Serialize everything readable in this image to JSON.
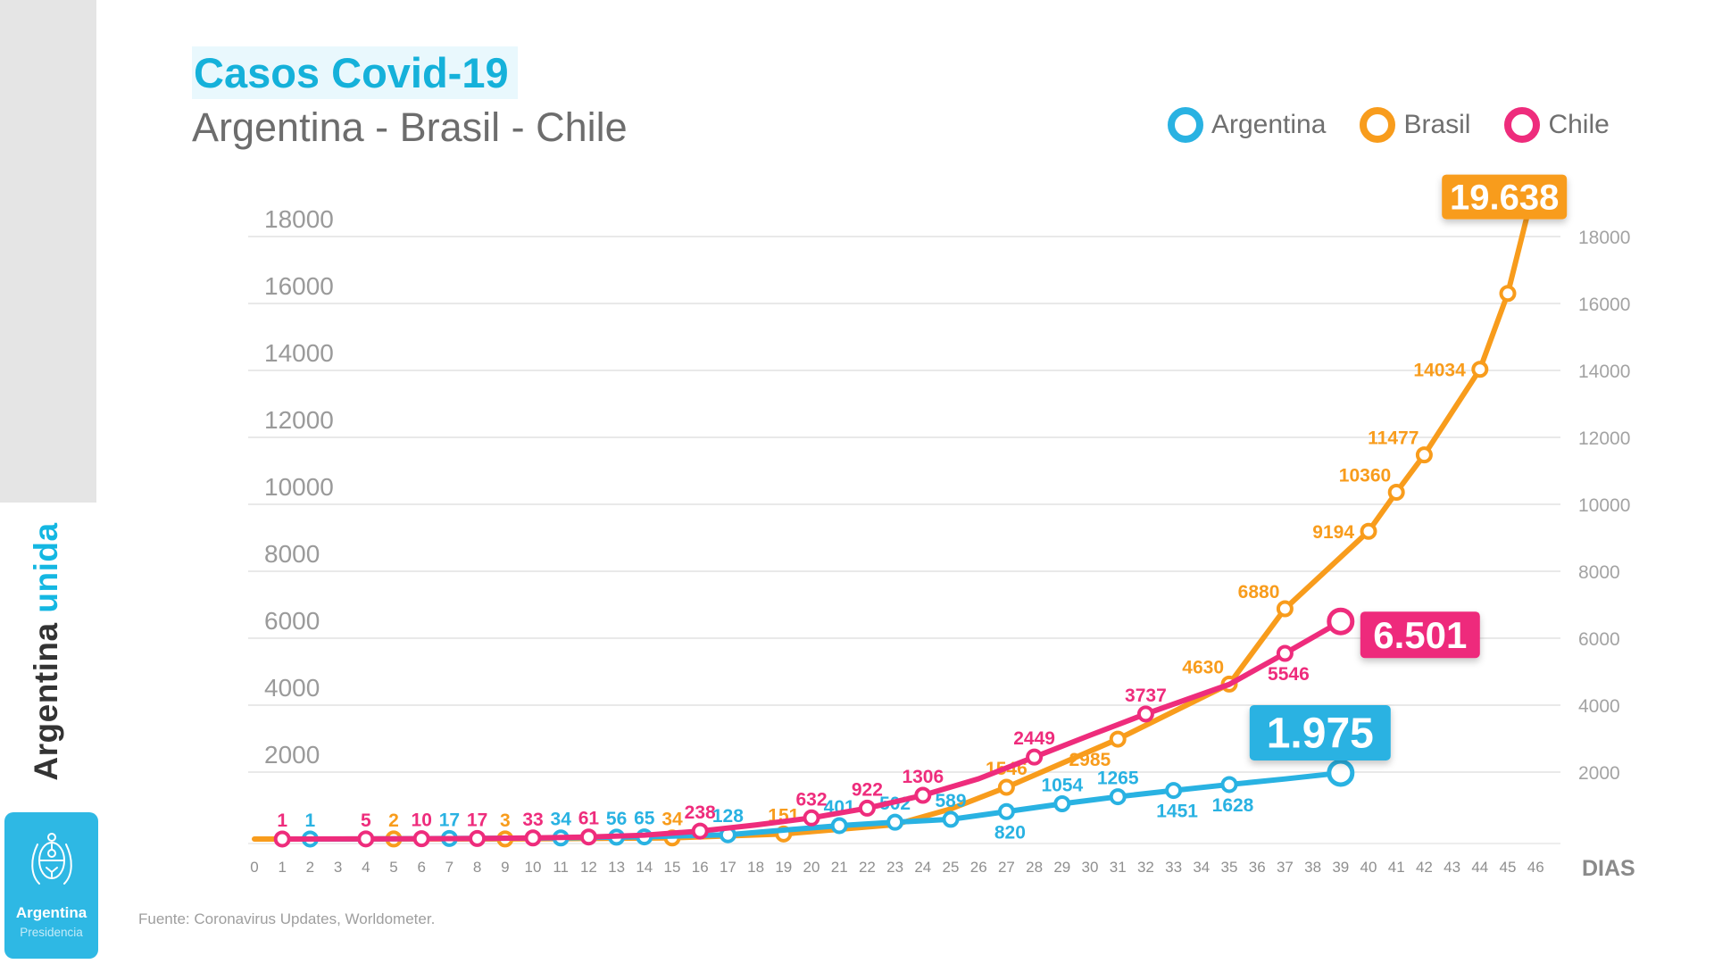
{
  "header": {
    "title": "Casos Covid-19",
    "subtitle": "Argentina - Brasil - Chile"
  },
  "brand": {
    "sidebar_text_main": "Argentina",
    "sidebar_text_accent": "unida",
    "logo_title": "Argentina",
    "logo_subtitle": "Presidencia"
  },
  "legend": [
    {
      "label": "Argentina",
      "color": "#29b2e2"
    },
    {
      "label": "Brasil",
      "color": "#f89c1c"
    },
    {
      "label": "Chile",
      "color": "#ee2c7c"
    }
  ],
  "source": {
    "text": "Fuente: Coronavirus Updates, Worldometer."
  },
  "colors": {
    "accent_cyan": "#29b2e2",
    "accent_orange": "#f89c1c",
    "accent_pink": "#ee2c7c",
    "title_cyan": "#15b1da",
    "sidebar_gray": "#e5e5e5",
    "logo_cyan": "#2eb8e4",
    "grid_gray": "#e9e9e9",
    "axis_text_gray": "#9a9a9a"
  },
  "chart_data": {
    "type": "line",
    "title": "Casos Covid-19",
    "subtitle": "Argentina - Brasil - Chile",
    "xlabel": "DIAS",
    "ylabel": "",
    "xlim": [
      0,
      46
    ],
    "ylim": [
      0,
      20000
    ],
    "grid": true,
    "legend_position": "top-right",
    "y_ticks": [
      18000,
      16000,
      14000,
      12000,
      10000,
      8000,
      6000,
      4000,
      2000
    ],
    "x_ticks": [
      0,
      1,
      2,
      3,
      4,
      5,
      6,
      7,
      8,
      9,
      10,
      11,
      12,
      13,
      14,
      15,
      16,
      17,
      18,
      19,
      20,
      21,
      22,
      23,
      24,
      25,
      26,
      27,
      28,
      29,
      30,
      31,
      32,
      33,
      34,
      35,
      36,
      37,
      38,
      39,
      40,
      41,
      42,
      43,
      44,
      45,
      46
    ],
    "series": [
      {
        "name": "Brasil",
        "color": "#f89c1c",
        "points": [
          {
            "day": 0,
            "value": 1,
            "marker": false
          },
          {
            "day": 5,
            "value": 2,
            "label": "2",
            "label_pos": "above"
          },
          {
            "day": 9,
            "value": 3,
            "label": "3",
            "label_pos": "above"
          },
          {
            "day": 15,
            "value": 34,
            "label": "34",
            "label_pos": "above"
          },
          {
            "day": 19,
            "value": 151,
            "label": "151",
            "label_pos": "above"
          },
          {
            "day": 23,
            "value": 430,
            "marker": false
          },
          {
            "day": 25,
            "value": 900,
            "marker": false
          },
          {
            "day": 27,
            "value": 1546,
            "label": "1546",
            "label_pos": "above"
          },
          {
            "day": 31,
            "value": 2985,
            "label": "2985",
            "label_pos": "below-left"
          },
          {
            "day": 35,
            "value": 4630,
            "label": "4630",
            "label_pos": "above-left"
          },
          {
            "day": 37,
            "value": 6880,
            "label": "6880",
            "label_pos": "above-left"
          },
          {
            "day": 40,
            "value": 9194,
            "label": "9194",
            "label_pos": "left"
          },
          {
            "day": 41,
            "value": 10360,
            "label": "10360",
            "label_pos": "above-left"
          },
          {
            "day": 42,
            "value": 11477,
            "label": "11477",
            "label_pos": "above-left"
          },
          {
            "day": 44,
            "value": 14034,
            "label": "14034",
            "label_pos": "left"
          },
          {
            "day": 45,
            "value": 16300
          },
          {
            "day": 46,
            "value": 19638,
            "marker": false
          }
        ],
        "callout": {
          "day": 46,
          "value": 19638,
          "text": "19.638"
        }
      },
      {
        "name": "Argentina",
        "color": "#29b2e2",
        "points": [
          {
            "day": 2,
            "value": 1,
            "label": "1",
            "label_pos": "above"
          },
          {
            "day": 4,
            "value": 2,
            "marker": false
          },
          {
            "day": 7,
            "value": 17,
            "label": "17",
            "label_pos": "above"
          },
          {
            "day": 11,
            "value": 34,
            "label": "34",
            "label_pos": "above"
          },
          {
            "day": 13,
            "value": 56,
            "label": "56",
            "label_pos": "above"
          },
          {
            "day": 14,
            "value": 65,
            "label": "65",
            "label_pos": "above"
          },
          {
            "day": 17,
            "value": 128,
            "label": "128",
            "label_pos": "above"
          },
          {
            "day": 19,
            "value": 266,
            "marker": false
          },
          {
            "day": 21,
            "value": 401,
            "label": "401",
            "label_pos": "above"
          },
          {
            "day": 23,
            "value": 502,
            "label": "502",
            "label_pos": "above"
          },
          {
            "day": 25,
            "value": 589,
            "label": "589",
            "label_pos": "above"
          },
          {
            "day": 27,
            "value": 820,
            "label": "820",
            "label_pos": "below"
          },
          {
            "day": 29,
            "value": 1054,
            "label": "1054",
            "label_pos": "above"
          },
          {
            "day": 31,
            "value": 1265,
            "label": "1265",
            "label_pos": "above"
          },
          {
            "day": 33,
            "value": 1451,
            "label": "1451",
            "label_pos": "below"
          },
          {
            "day": 35,
            "value": 1628,
            "label": "1628",
            "label_pos": "below"
          },
          {
            "day": 37,
            "value": 1795,
            "marker": false
          },
          {
            "day": 39,
            "value": 1975,
            "end": true
          }
        ],
        "callout": {
          "day": 39,
          "value": 1975,
          "text": "1.975"
        }
      },
      {
        "name": "Chile",
        "color": "#ee2c7c",
        "points": [
          {
            "day": 1,
            "value": 1,
            "label": "1",
            "label_pos": "above"
          },
          {
            "day": 4,
            "value": 5,
            "label": "5",
            "label_pos": "above"
          },
          {
            "day": 6,
            "value": 10,
            "label": "10",
            "label_pos": "above"
          },
          {
            "day": 8,
            "value": 17,
            "label": "17",
            "label_pos": "above"
          },
          {
            "day": 10,
            "value": 33,
            "label": "33",
            "label_pos": "above"
          },
          {
            "day": 12,
            "value": 61,
            "label": "61",
            "label_pos": "above"
          },
          {
            "day": 14,
            "value": 115,
            "marker": false
          },
          {
            "day": 16,
            "value": 238,
            "label": "238",
            "label_pos": "above"
          },
          {
            "day": 18,
            "value": 420,
            "marker": false
          },
          {
            "day": 20,
            "value": 632,
            "label": "632",
            "label_pos": "above"
          },
          {
            "day": 22,
            "value": 922,
            "label": "922",
            "label_pos": "above"
          },
          {
            "day": 24,
            "value": 1306,
            "label": "1306",
            "label_pos": "above"
          },
          {
            "day": 26,
            "value": 1800,
            "marker": false
          },
          {
            "day": 28,
            "value": 2449,
            "label": "2449",
            "label_pos": "above"
          },
          {
            "day": 30,
            "value": 3100,
            "marker": false
          },
          {
            "day": 32,
            "value": 3737,
            "label": "3737",
            "label_pos": "above"
          },
          {
            "day": 35,
            "value": 4620,
            "marker": false
          },
          {
            "day": 37,
            "value": 5546,
            "label": "5546",
            "label_pos": "below"
          },
          {
            "day": 39,
            "value": 6501,
            "end": true
          }
        ],
        "callout": {
          "day": 39,
          "value": 6501,
          "text": "6.501"
        }
      }
    ]
  }
}
